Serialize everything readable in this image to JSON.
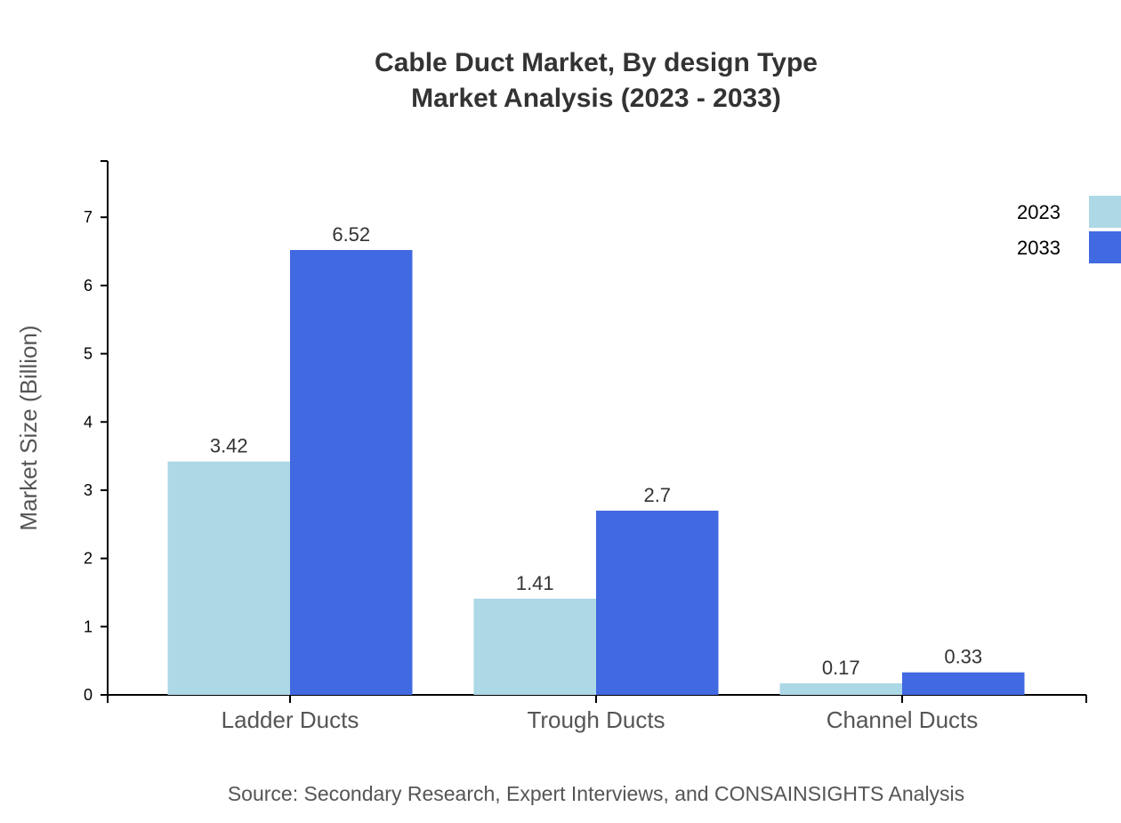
{
  "chart_data": {
    "type": "bar",
    "title": "Cable Duct Market, By design Type",
    "subtitle": "Market Analysis (2023 - 2033)",
    "ylabel": "Market Size (Billion)",
    "xlabel": "",
    "categories": [
      "Ladder Ducts",
      "Trough Ducts",
      "Channel Ducts"
    ],
    "series": [
      {
        "name": "2023",
        "values": [
          3.42,
          1.41,
          0.17
        ],
        "color": "#ADD8E6"
      },
      {
        "name": "2033",
        "values": [
          6.52,
          2.7,
          0.33
        ],
        "color": "#4169E1"
      }
    ],
    "ylim": [
      0,
      7.824
    ],
    "yticks": [
      0,
      1,
      2,
      3,
      4,
      5,
      6,
      7
    ],
    "grid": false,
    "legend": "top-right",
    "source": "Source: Secondary Research, Expert Interviews, and CONSAINSIGHTS Analysis"
  }
}
